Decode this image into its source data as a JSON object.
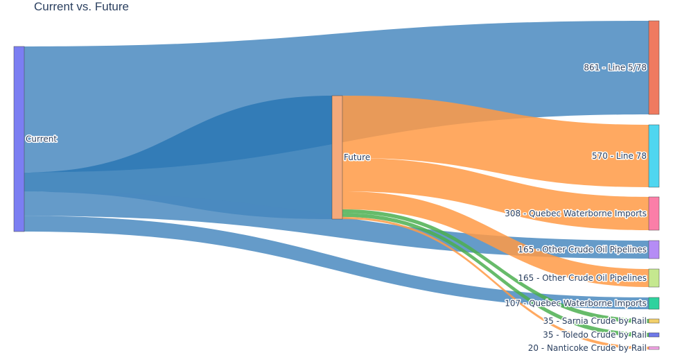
{
  "chart_data": {
    "type": "sankey",
    "title": "Current vs. Future",
    "nodes": [
      {
        "id": "current",
        "label": "Current",
        "color": "#7b7ef2"
      },
      {
        "id": "future",
        "label": "Future",
        "color": "#f5a97a"
      },
      {
        "id": "line578",
        "label": "861 - Line 5/78",
        "color": "#ef7a60"
      },
      {
        "id": "line78",
        "label": "570 - Line 78",
        "color": "#4fd6f0"
      },
      {
        "id": "quebec308",
        "label": "308 - Quebec Waterborne Imports",
        "color": "#fb7ea8"
      },
      {
        "id": "other165a",
        "label": "165 - Other Crude Oil Pipelines",
        "color": "#b58cf5"
      },
      {
        "id": "other165b",
        "label": "165 - Other Crude Oil Pipelines",
        "color": "#c5e88f"
      },
      {
        "id": "quebec107",
        "label": "107 - Quebec Waterborne Imports",
        "color": "#2fd29e"
      },
      {
        "id": "sarnia",
        "label": "35 - Sarnia Crude by Rail",
        "color": "#f2cf6b"
      },
      {
        "id": "toledo",
        "label": "35 - Toledo Crude by Rail",
        "color": "#6f78e8"
      },
      {
        "id": "nanticoke",
        "label": "20 - Nanticoke Crude by Rail",
        "color": "#f4a3e6"
      }
    ],
    "links": [
      {
        "source": "current",
        "target": "line578",
        "value": 861,
        "color": "#4a8ac0"
      },
      {
        "source": "current",
        "target": "future",
        "value": 133,
        "color": "#2a77b4"
      },
      {
        "source": "current",
        "target": "other165a",
        "value": 165,
        "color": "#4a8ac0"
      },
      {
        "source": "current",
        "target": "quebec107",
        "value": 107,
        "color": "#4a8ac0"
      },
      {
        "source": "future",
        "target": "line78",
        "value": 570,
        "color": "#ff9a45"
      },
      {
        "source": "future",
        "target": "quebec308",
        "value": 308,
        "color": "#ff9a45"
      },
      {
        "source": "future",
        "target": "other165b",
        "value": 165,
        "color": "#ff9a45"
      },
      {
        "source": "future",
        "target": "sarnia",
        "value": 35,
        "color": "#4caf50"
      },
      {
        "source": "future",
        "target": "toledo",
        "value": 35,
        "color": "#4caf50"
      },
      {
        "source": "future",
        "target": "nanticoke",
        "value": 20,
        "color": "#ff9a45"
      }
    ]
  }
}
